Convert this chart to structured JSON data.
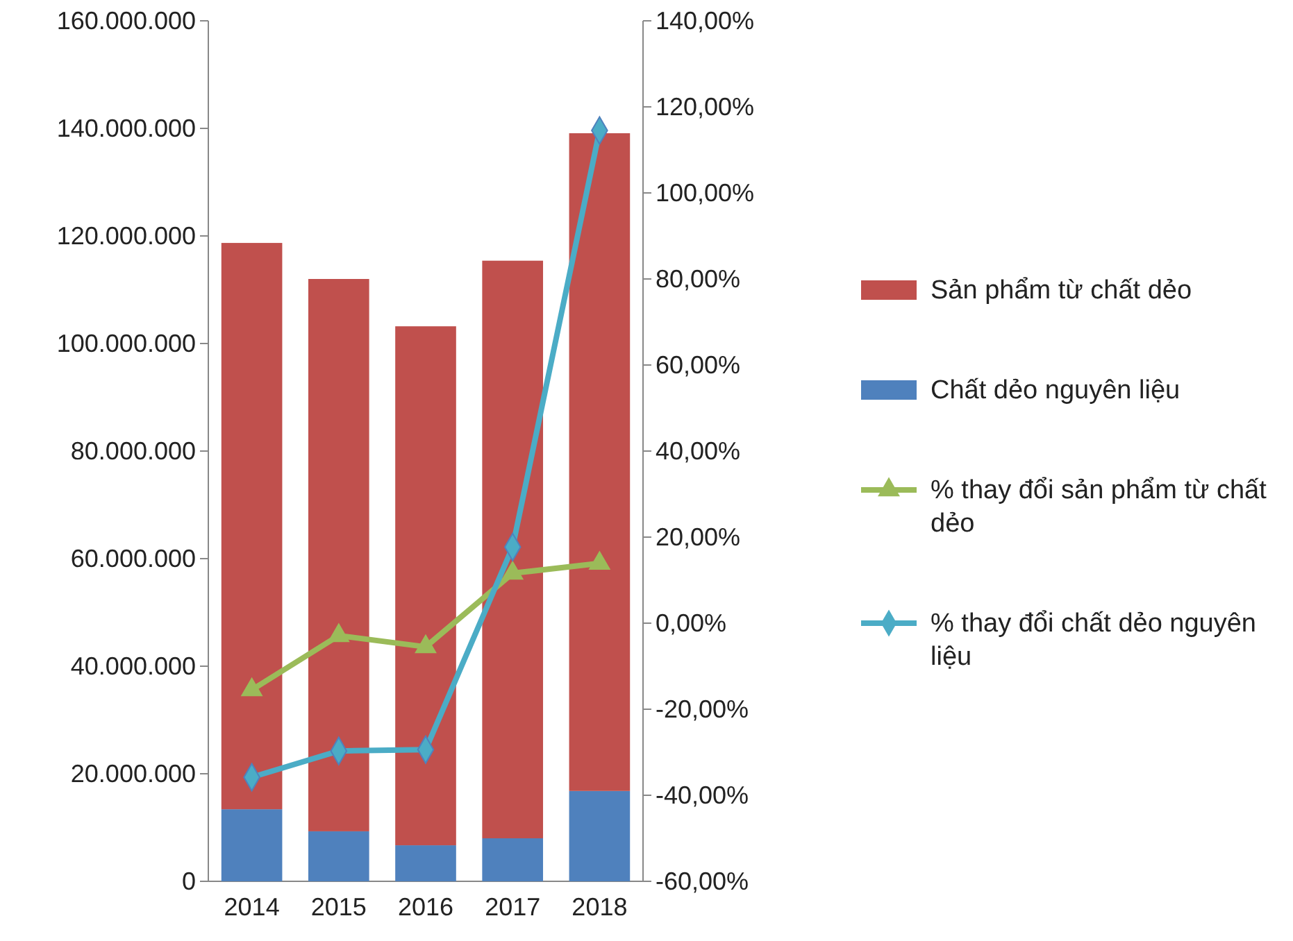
{
  "chart_data": {
    "type": "bar",
    "stacked": true,
    "categories": [
      "2014",
      "2015",
      "2016",
      "2017",
      "2018"
    ],
    "series": [
      {
        "name": "Chất dẻo nguyên liệu",
        "color": "#4f81bd",
        "values": [
          13400000,
          9300000,
          6700000,
          8000000,
          16800000
        ]
      },
      {
        "name": "Sản phẩm từ chất dẻo",
        "color": "#c0504d",
        "values": [
          105300000,
          102700000,
          96500000,
          107400000,
          122300000
        ]
      },
      {
        "name": "% thay đổi sản phẩm từ chất dẻo",
        "type": "line",
        "axis": "y2",
        "marker": "triangle",
        "color": "#9bbb59",
        "values": [
          -15.5,
          -2.9,
          -5.5,
          11.6,
          13.9
        ]
      },
      {
        "name": "% thay đổi chất dẻo nguyên liệu",
        "type": "line",
        "axis": "y2",
        "marker": "diamond",
        "color": "#4bacc6",
        "values": [
          -35.8,
          -29.7,
          -29.4,
          17.7,
          114.5
        ]
      }
    ],
    "ylim": [
      0,
      160000000
    ],
    "yticks": [
      {
        "value": 0,
        "label": "0"
      },
      {
        "value": 20000000,
        "label": "20.000.000"
      },
      {
        "value": 40000000,
        "label": "40.000.000"
      },
      {
        "value": 60000000,
        "label": "60.000.000"
      },
      {
        "value": 80000000,
        "label": "80.000.000"
      },
      {
        "value": 100000000,
        "label": "100.000.000"
      },
      {
        "value": 120000000,
        "label": "120.000.000"
      },
      {
        "value": 140000000,
        "label": "140.000.000"
      },
      {
        "value": 160000000,
        "label": "160.000.000"
      }
    ],
    "y2lim": [
      -60,
      140
    ],
    "y2ticks": [
      {
        "value": -60,
        "label": "-60,00%"
      },
      {
        "value": -40,
        "label": "-40,00%"
      },
      {
        "value": -20,
        "label": "-20,00%"
      },
      {
        "value": 0,
        "label": "0,00%"
      },
      {
        "value": 20,
        "label": "20,00%"
      },
      {
        "value": 40,
        "label": "40,00%"
      },
      {
        "value": 60,
        "label": "60,00%"
      },
      {
        "value": 80,
        "label": "80,00%"
      },
      {
        "value": 100,
        "label": "100,00%"
      },
      {
        "value": 120,
        "label": "120,00%"
      },
      {
        "value": 140,
        "label": "140,00%"
      }
    ],
    "legend": "right"
  }
}
